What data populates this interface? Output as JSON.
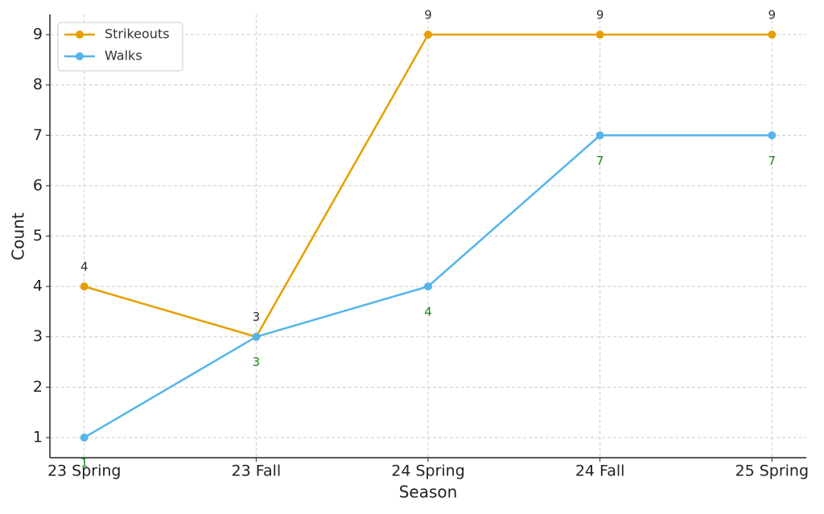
{
  "chart_data": {
    "type": "line",
    "x_label": "Season",
    "y_label": "Count",
    "categories": [
      "23 Spring",
      "23 Fall",
      "24 Spring",
      "24 Fall",
      "25 Spring"
    ],
    "series": [
      {
        "name": "Strikeouts",
        "color": "#e69f00",
        "values": [
          4,
          3,
          9,
          9,
          9
        ]
      },
      {
        "name": "Walks",
        "color": "#56b4e9",
        "values": [
          1,
          3,
          4,
          7,
          7
        ]
      }
    ],
    "ylim": [
      0.6,
      9.4
    ],
    "yticks": [
      1,
      2,
      3,
      4,
      5,
      6,
      7,
      8,
      9
    ],
    "grid": true,
    "legend": "upper left"
  }
}
